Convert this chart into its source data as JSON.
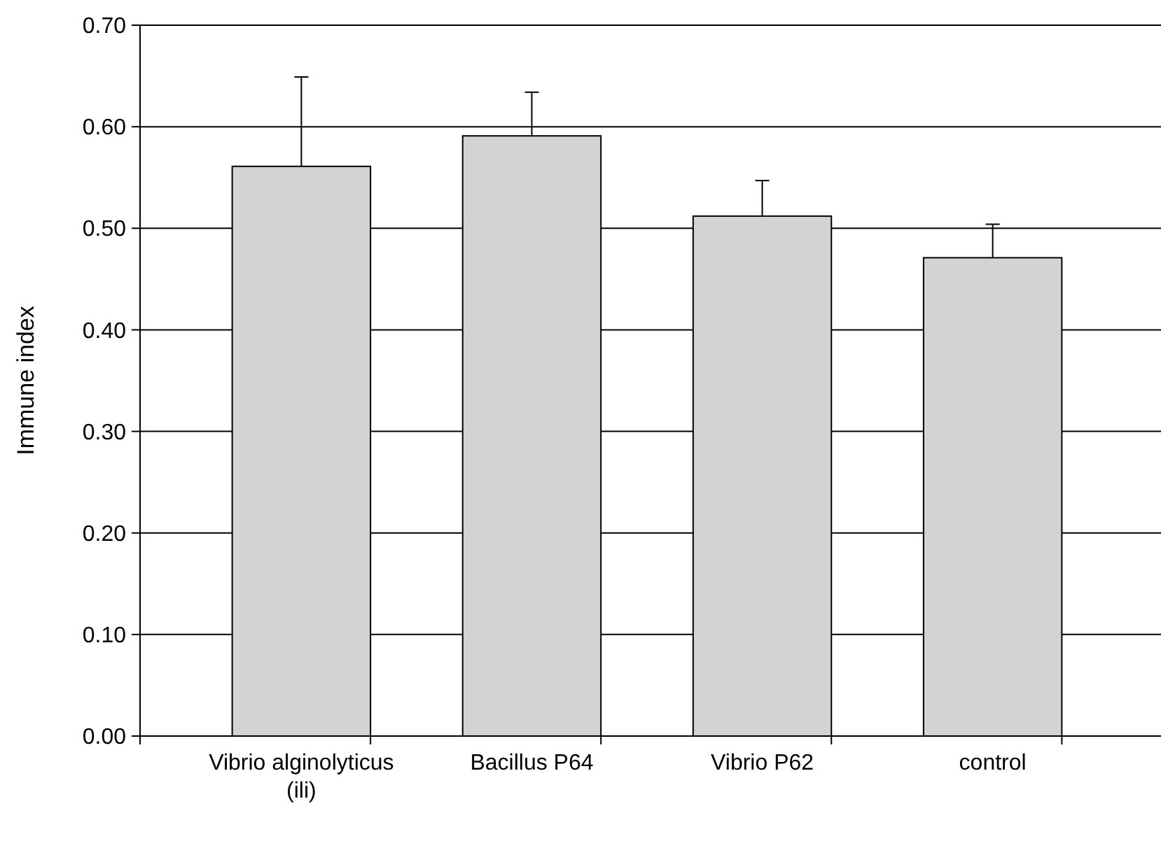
{
  "chart_data": {
    "type": "bar",
    "ylabel": "Immune index",
    "categories": [
      "Vibrio alginolyticus (ili)",
      "Bacillus P64",
      "Vibrio P62",
      "control"
    ],
    "values": [
      0.561,
      0.591,
      0.512,
      0.471
    ],
    "errors": [
      [
        0.561,
        0.649
      ],
      [
        0.591,
        0.634
      ],
      [
        0.512,
        0.547
      ],
      [
        0.471,
        0.504
      ]
    ],
    "color": "#d3d3d3",
    "ylim": [
      0,
      0.7
    ],
    "yticks": [
      {
        "value": 0,
        "label": "0.00"
      },
      {
        "value": 0.1,
        "label": "0.10"
      },
      {
        "value": 0.2,
        "label": "0.20"
      },
      {
        "value": 0.3,
        "label": "0.30"
      },
      {
        "value": 0.4,
        "label": "0.40"
      },
      {
        "value": 0.5,
        "label": "0.50"
      },
      {
        "value": 0.6,
        "label": "0.60"
      },
      {
        "value": 0.7,
        "label": "0.70"
      }
    ],
    "grid": "y"
  }
}
